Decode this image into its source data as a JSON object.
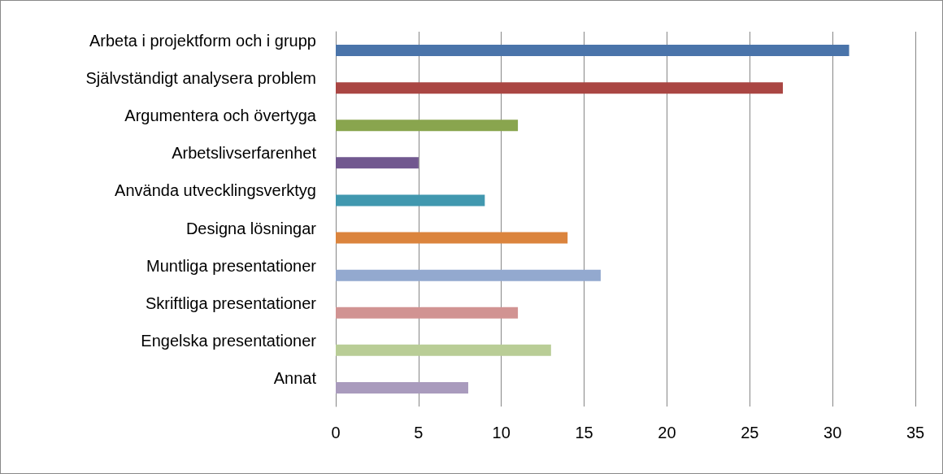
{
  "chart_data": {
    "type": "bar",
    "orientation": "horizontal",
    "categories": [
      "Arbeta i projektform och i grupp",
      "Självständigt analysera problem",
      "Argumentera och övertyga",
      "Arbetslivserfarenhet",
      "Använda utvecklingsverktyg",
      "Designa lösningar",
      "Muntliga presentationer",
      "Skriftliga presentationer",
      "Engelska presentationer",
      "Annat"
    ],
    "values": [
      31,
      27,
      11,
      5,
      9,
      14,
      16,
      11,
      13,
      8
    ],
    "colors": [
      "#4a74aa",
      "#aa4643",
      "#89a54e",
      "#71588f",
      "#4198af",
      "#db843d",
      "#93a9cf",
      "#d19392",
      "#b9cd96",
      "#a99bbd"
    ],
    "xlim": [
      0,
      35
    ],
    "xticks": [
      0,
      5,
      10,
      15,
      20,
      25,
      30,
      35
    ],
    "grid": "x"
  }
}
